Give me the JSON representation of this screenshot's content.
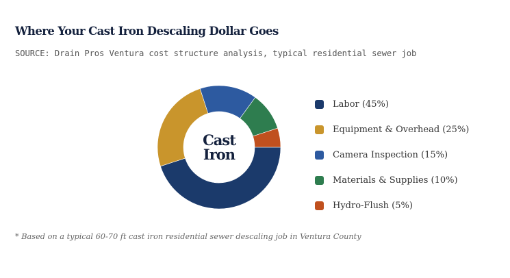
{
  "header": {
    "title": "Where Your Cast Iron Descaling Dollar Goes",
    "subtitle": "SOURCE: Drain Pros Ventura cost structure analysis, typical residential sewer job"
  },
  "donut": {
    "center_line1": "Cast",
    "center_line2": "Iron"
  },
  "legend": {
    "items": [
      {
        "label": "Labor (45%)",
        "color": "#1b3a6b"
      },
      {
        "label": "Equipment & Overhead (25%)",
        "color": "#c9952c"
      },
      {
        "label": "Camera Inspection (15%)",
        "color": "#2d5aa0"
      },
      {
        "label": "Materials & Supplies (10%)",
        "color": "#2e7d4f"
      },
      {
        "label": "Hydro-Flush (5%)",
        "color": "#c0501e"
      }
    ]
  },
  "footnote": "* Based on a typical 60-70 ft cast iron residential sewer descaling job in Ventura County",
  "chart_data": {
    "type": "pie",
    "subtype": "donut",
    "title": "Where Your Cast Iron Descaling Dollar Goes",
    "subtitle": "SOURCE: Drain Pros Ventura cost structure analysis, typical residential sewer job",
    "center_text": "Cast Iron",
    "categories": [
      "Labor",
      "Equipment & Overhead",
      "Camera Inspection",
      "Materials & Supplies",
      "Hydro-Flush"
    ],
    "values": [
      45,
      25,
      15,
      10,
      5
    ],
    "unit": "%",
    "colors": [
      "#1b3a6b",
      "#c9952c",
      "#2d5aa0",
      "#2e7d4f",
      "#c0501e"
    ],
    "start_angle_deg": 90,
    "direction": "clockwise",
    "legend_position": "right",
    "footnote": "* Based on a typical 60-70 ft cast iron residential sewer descaling job in Ventura County"
  }
}
